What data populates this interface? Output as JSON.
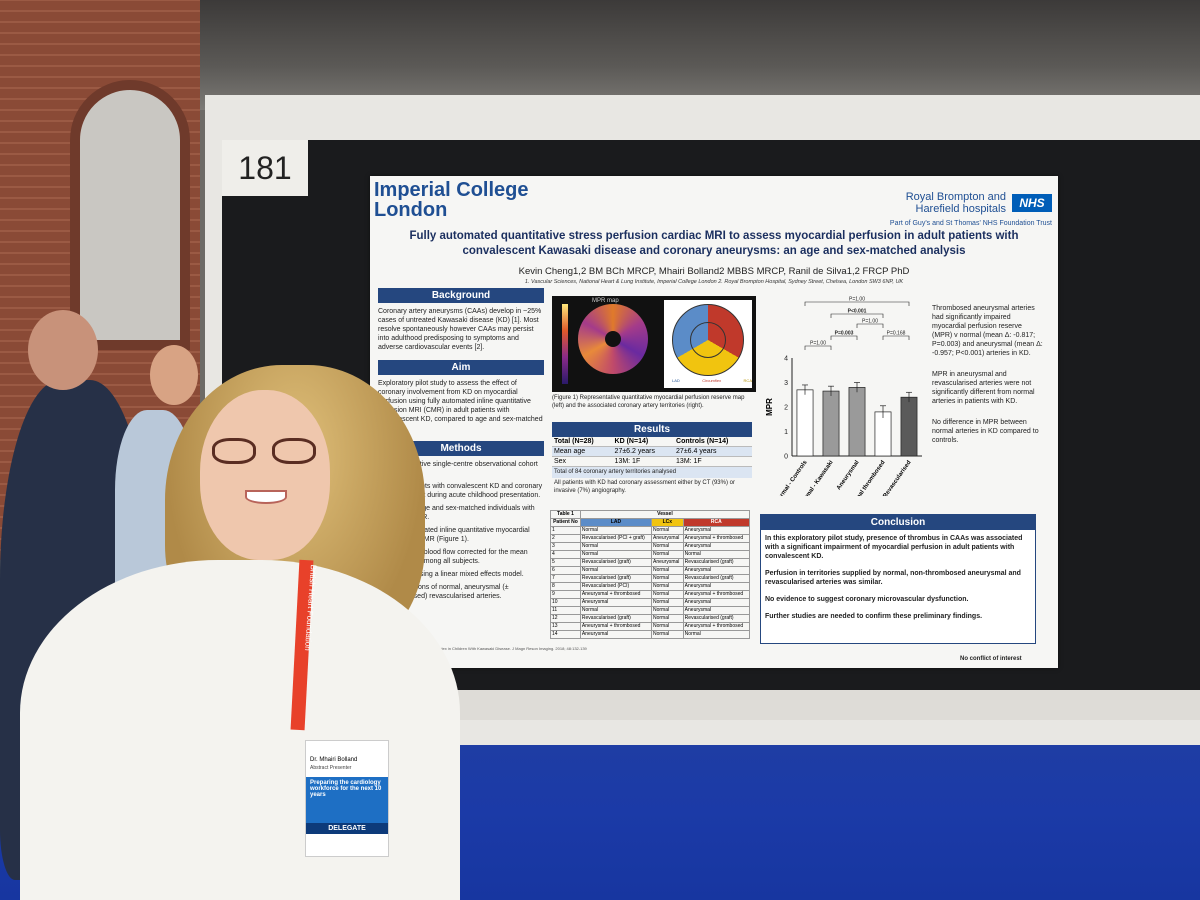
{
  "booth_number": "181",
  "poster": {
    "logo_left": "Imperial College\nLondon",
    "logo_right": "Royal Brompton and\nHarefield hospitals",
    "nhs": "NHS",
    "trust": "Part of Guy's and St Thomas' NHS Foundation Trust",
    "title": "Fully automated quantitative stress perfusion cardiac MRI to assess myocardial perfusion in adult patients with convalescent Kawasaki disease and coronary aneurysms: an age and sex-matched analysis",
    "authors": "Kevin Cheng1,2 BM BCh MRCP, Mhairi Bolland2 MBBS MRCP, Ranil de Silva1,2 FRCP PhD",
    "affiliations": "1. Vascular Sciences, National Heart & Lung Institute, Imperial College London 2. Royal Brompton Hospital, Sydney Street, Chelsea, London SW3 6NP, UK",
    "background_head": "Background",
    "background_text": "Coronary artery aneurysms (CAAs) develop in ~25% cases of untreated Kawasaki disease (KD) [1]. Most resolve spontaneously however CAAs may persist into adulthood predisposing to symptoms and adverse cardiovascular events [2].",
    "aim_head": "Aim",
    "aim_text": "Exploratory pilot study to assess the effect of coronary involvement from KD on myocardial perfusion using fully automated inline quantitative perfusion MRI (CMR) in adult patients with convalescent KD, compared to age and sex-matched controls.",
    "methods_head": "Methods",
    "methods_items": [
      "Retrospective single-centre observational cohort study.",
      "Adult patients with convalescent KD and coronary involvement during acute childhood presentation.",
      "Controls: Age and sex-matched individuals with normal CMR.",
      "Fully automated inline quantitative myocardial perfusion CMR (Figure 1).",
      "Myocardial blood flow corrected for the mean heart rate among all subjects.",
      "Analysis using a linear mixed effects model.",
      "Comparisons of normal, aneurysmal (± thrombosed) revascularised arteries."
    ],
    "figure_label": "MPR map",
    "figure_caption": "(Figure 1) Representative quantitative myocardial perfusion reserve map (left) and the associated coronary artery territories (right).",
    "bullseye_legend": [
      "LAD",
      "Circumflex",
      "RCA"
    ],
    "results_head": "Results",
    "results_table": {
      "headers": [
        "Total (N=28)",
        "KD (N=14)",
        "Controls (N=14)"
      ],
      "rows": [
        [
          "Mean age",
          "27±6.2 years",
          "27±6.4 years"
        ],
        [
          "Sex",
          "13M: 1F",
          "13M: 1F"
        ]
      ],
      "footer1": "Total of 84 coronary artery territories analysed",
      "footer2": "All patients with KD had coronary assessment either by CT (93%) or invasive (7%) angiography."
    },
    "table1": {
      "title": "Table 1",
      "vessel": "Vessel",
      "headers": [
        "Patient No",
        "LAD",
        "LCx",
        "RCA"
      ],
      "rows": [
        [
          "1",
          "Normal",
          "Normal",
          "Aneurysmal"
        ],
        [
          "2",
          "Revascularised (PCI + graft)",
          "Aneurysmal",
          "Aneurysmal + thrombosed"
        ],
        [
          "3",
          "Normal",
          "Normal",
          "Aneurysmal"
        ],
        [
          "4",
          "Normal",
          "Normal",
          "Normal"
        ],
        [
          "5",
          "Revascularised (graft)",
          "Aneurysmal",
          "Revascularised (graft)"
        ],
        [
          "6",
          "Normal",
          "Normal",
          "Aneurysmal"
        ],
        [
          "7",
          "Revascularised (graft)",
          "Normal",
          "Revascularised (graft)"
        ],
        [
          "8",
          "Revascularised (PCI)",
          "Normal",
          "Aneurysmal"
        ],
        [
          "9",
          "Aneurysmal + thrombosed",
          "Normal",
          "Aneurysmal + thrombosed"
        ],
        [
          "10",
          "Aneurysmal",
          "Normal",
          "Aneurysmal"
        ],
        [
          "11",
          "Normal",
          "Normal",
          "Aneurysmal"
        ],
        [
          "12",
          "Revascularised (graft)",
          "Normal",
          "Revascularised (graft)"
        ],
        [
          "13",
          "Aneurysmal + thrombosed",
          "Normal",
          "Aneurysmal + thrombosed"
        ],
        [
          "14",
          "Aneurysmal",
          "Normal",
          "Normal"
        ]
      ]
    },
    "pvalues": [
      "P=1.00",
      "P=0.003",
      "P=1.00",
      "P<0.001",
      "P=0.168",
      "P=1.00"
    ],
    "notes": [
      "Thrombosed aneurysmal arteries had significantly impaired myocardial perfusion reserve (MPR) v normal (mean Δ: -0.817; P=0.003) and aneurysmal (mean Δ: -0.957; P<0.001) arteries in KD.",
      "MPR in aneurysmal and revascularised arteries were not significantly different from normal arteries in patients with KD.",
      "No difference in MPR between normal arteries in KD compared to controls."
    ],
    "conclusion_head": "Conclusion",
    "conclusion_items": [
      "In this exploratory pilot study, presence of thrombus in CAAs was associated with a significant impairment of myocardial perfusion in adult patients with convalescent KD.",
      "Perfusion in territories supplied by normal, non-thrombosed aneurysmal and revascularised arteries was similar.",
      "No evidence to suggest coronary microvascular dysfunction.",
      "Further studies are needed to confirm these preliminary findings."
    ],
    "references": "1. Myocardial Perfusion Reserve Index in Children With Kawasaki Disease. J Magn Reson Imaging. 2018; 48:132-139",
    "conflict": "No conflict of interest"
  },
  "badge": {
    "name": "Dr. Mhairi Bolland",
    "role": "Abstract Presenter",
    "tagline": "Preparing the cardiology workforce for the next 10 years",
    "type": "DELEGATE",
    "lanyard": "British Heart Foundation"
  },
  "chart_data": {
    "type": "bar",
    "categories": [
      "Normal - Controls",
      "Normal - Kawasaki",
      "Aneurysmal",
      "Aneurysmal thrombosed",
      "Revascularised"
    ],
    "values": [
      2.7,
      2.65,
      2.8,
      1.8,
      2.4
    ],
    "errors": [
      0.2,
      0.2,
      0.2,
      0.25,
      0.2
    ],
    "ylabel": "MPR",
    "xlabel": "",
    "ylim": [
      0,
      4
    ],
    "yticks": [
      0,
      1,
      2,
      3,
      4
    ],
    "colors": [
      "#ffffff",
      "#9a9a9a",
      "#9a9a9a",
      "#ffffff",
      "#5a5a5a"
    ]
  }
}
